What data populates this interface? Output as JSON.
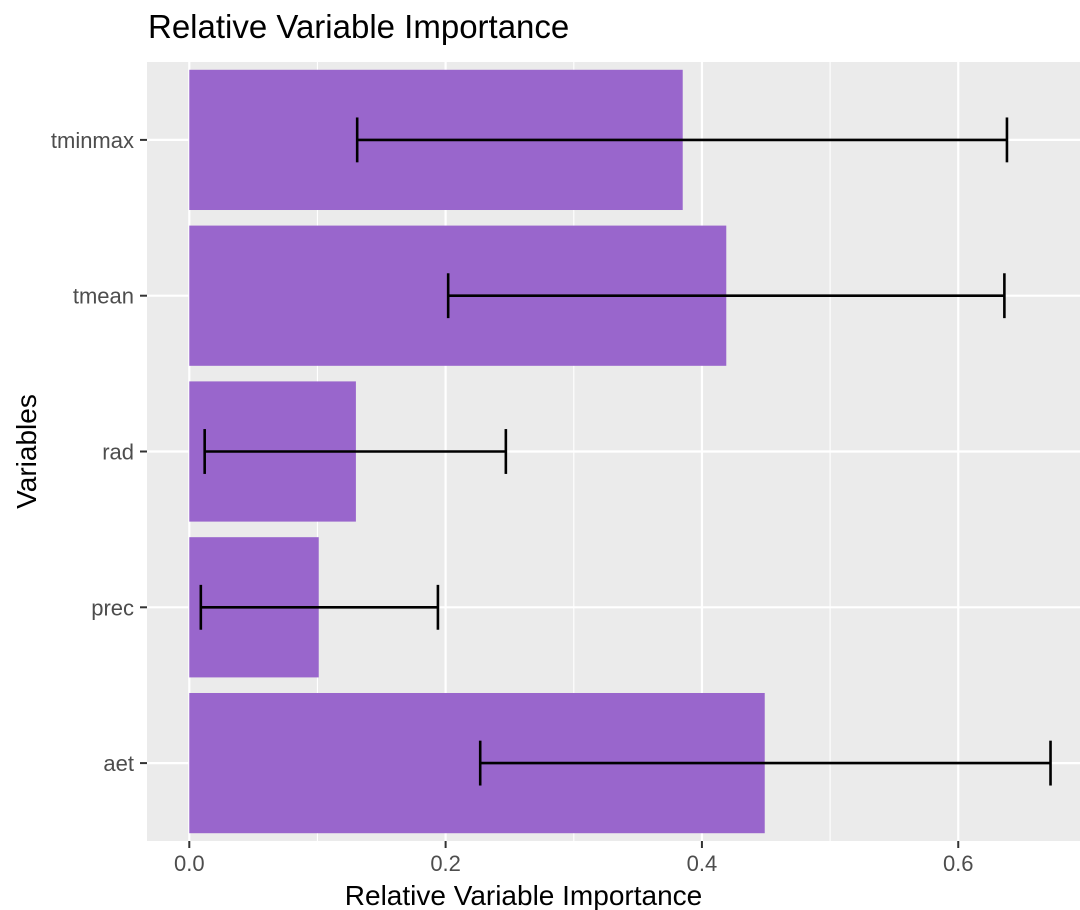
{
  "chart_data": {
    "type": "bar",
    "orientation": "horizontal",
    "title": "Relative Variable Importance",
    "xlabel": "Relative Variable Importance",
    "ylabel": "Variables",
    "categories": [
      "aet",
      "prec",
      "rad",
      "tmean",
      "tminmax"
    ],
    "values": [
      0.449,
      0.101,
      0.13,
      0.419,
      0.385
    ],
    "error_low": [
      0.227,
      0.009,
      0.012,
      0.202,
      0.131
    ],
    "error_high": [
      0.672,
      0.194,
      0.247,
      0.636,
      0.638
    ],
    "xlim": [
      -0.033,
      0.695
    ],
    "xticks": [
      "0.0",
      "0.2",
      "0.4",
      "0.6"
    ],
    "xtick_values": [
      0.0,
      0.2,
      0.4,
      0.6
    ],
    "bar_color": "#9966CC",
    "panel_background": "#EBEBEB",
    "grid": true,
    "legend": "none"
  }
}
